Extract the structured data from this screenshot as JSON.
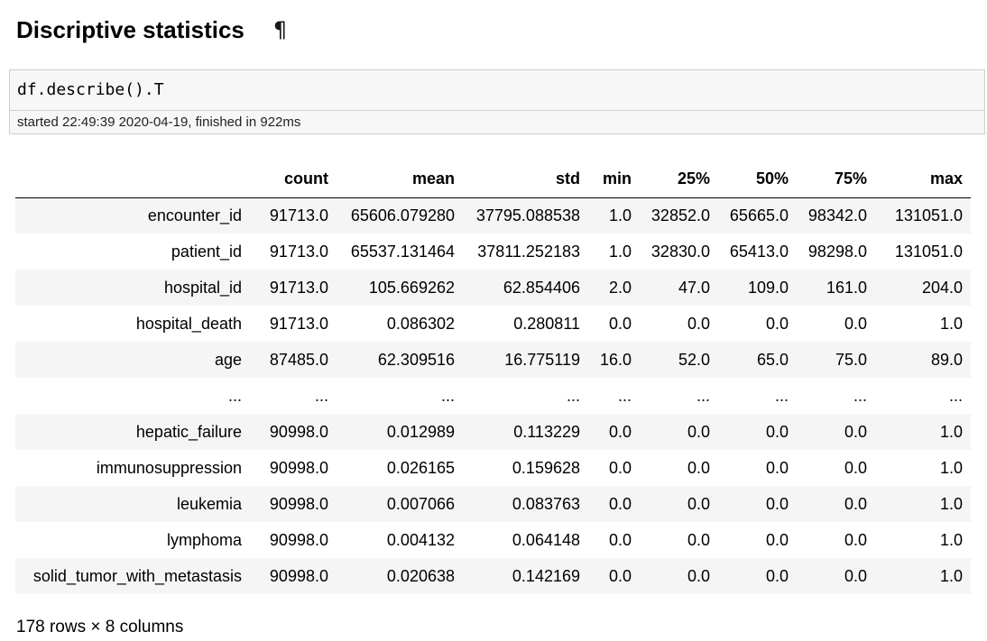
{
  "heading": {
    "title": "Discriptive statistics",
    "anchor_symbol": "¶"
  },
  "cell": {
    "code": "df.describe().T",
    "timing": "started 22:49:39 2020-04-19, finished in 922ms"
  },
  "table": {
    "columns": [
      "count",
      "mean",
      "std",
      "min",
      "25%",
      "50%",
      "75%",
      "max"
    ],
    "rows": [
      {
        "index": "encounter_id",
        "values": [
          "91713.0",
          "65606.079280",
          "37795.088538",
          "1.0",
          "32852.0",
          "65665.0",
          "98342.0",
          "131051.0"
        ]
      },
      {
        "index": "patient_id",
        "values": [
          "91713.0",
          "65537.131464",
          "37811.252183",
          "1.0",
          "32830.0",
          "65413.0",
          "98298.0",
          "131051.0"
        ]
      },
      {
        "index": "hospital_id",
        "values": [
          "91713.0",
          "105.669262",
          "62.854406",
          "2.0",
          "47.0",
          "109.0",
          "161.0",
          "204.0"
        ]
      },
      {
        "index": "hospital_death",
        "values": [
          "91713.0",
          "0.086302",
          "0.280811",
          "0.0",
          "0.0",
          "0.0",
          "0.0",
          "1.0"
        ]
      },
      {
        "index": "age",
        "values": [
          "87485.0",
          "62.309516",
          "16.775119",
          "16.0",
          "52.0",
          "65.0",
          "75.0",
          "89.0"
        ]
      },
      {
        "index": "...",
        "values": [
          "...",
          "...",
          "...",
          "...",
          "...",
          "...",
          "...",
          "..."
        ]
      },
      {
        "index": "hepatic_failure",
        "values": [
          "90998.0",
          "0.012989",
          "0.113229",
          "0.0",
          "0.0",
          "0.0",
          "0.0",
          "1.0"
        ]
      },
      {
        "index": "immunosuppression",
        "values": [
          "90998.0",
          "0.026165",
          "0.159628",
          "0.0",
          "0.0",
          "0.0",
          "0.0",
          "1.0"
        ]
      },
      {
        "index": "leukemia",
        "values": [
          "90998.0",
          "0.007066",
          "0.083763",
          "0.0",
          "0.0",
          "0.0",
          "0.0",
          "1.0"
        ]
      },
      {
        "index": "lymphoma",
        "values": [
          "90998.0",
          "0.004132",
          "0.064148",
          "0.0",
          "0.0",
          "0.0",
          "0.0",
          "1.0"
        ]
      },
      {
        "index": "solid_tumor_with_metastasis",
        "values": [
          "90998.0",
          "0.020638",
          "0.142169",
          "0.0",
          "0.0",
          "0.0",
          "0.0",
          "1.0"
        ]
      }
    ]
  },
  "shape": "178 rows × 8 columns",
  "colors": {
    "cell_background": "#f7f7f7",
    "cell_border": "#cfcfcf",
    "row_stripe": "#f5f5f5"
  }
}
